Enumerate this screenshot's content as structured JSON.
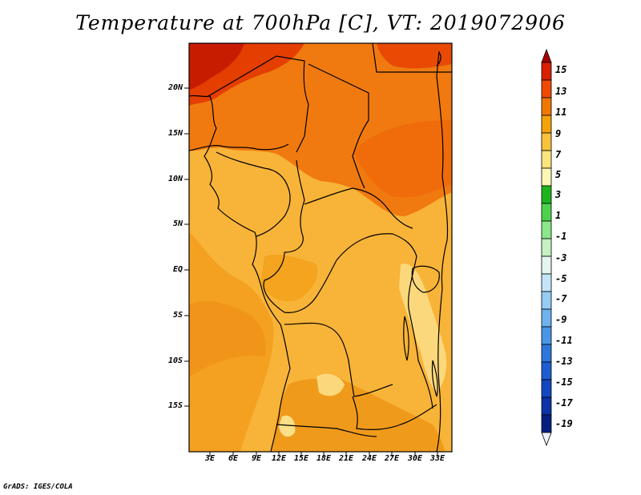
{
  "title": "Temperature at 700hPa [C], VT: 2019072906",
  "credit": "GrADS: IGES/COLA",
  "map": {
    "region": "Central Africa",
    "lat_labels": [
      "20N",
      "15N",
      "10N",
      "5N",
      "EQ",
      "5S",
      "10S",
      "15S"
    ],
    "lon_labels": [
      "3E",
      "6E",
      "9E",
      "12E",
      "15E",
      "18E",
      "21E",
      "24E",
      "27E",
      "30E",
      "33E"
    ]
  },
  "colorbar": {
    "labels": [
      "15",
      "13",
      "11",
      "9",
      "7",
      "5",
      "3",
      "1",
      "-1",
      "-3",
      "-5",
      "-7",
      "-9",
      "-11",
      "-13",
      "-15",
      "-17",
      "-19"
    ],
    "colors": [
      "#a50000",
      "#d92000",
      "#f04a00",
      "#f07800",
      "#f4a20a",
      "#f8c23c",
      "#fbe47e",
      "#fdf6b4",
      "#1eb41e",
      "#4ed24e",
      "#8ce68c",
      "#c4f2c4",
      "#e4f6f0",
      "#c4e4fa",
      "#96ccf4",
      "#6eb2ee",
      "#4a96e6",
      "#2e78dc",
      "#1e5ed2",
      "#1446c0",
      "#0c32a6",
      "#061e80",
      "#f0f0ff"
    ]
  }
}
